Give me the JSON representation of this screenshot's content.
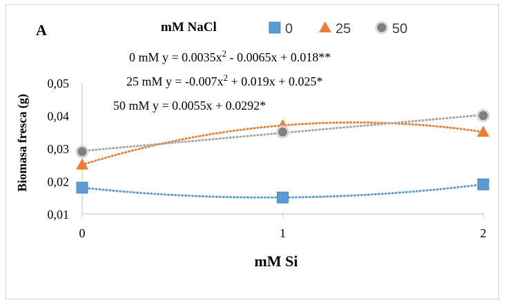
{
  "chart_data": {
    "type": "scatter",
    "panel_label": "A",
    "legend_title": "mM NaCl",
    "legend_position": "top-right",
    "xlabel": "mM Si",
    "ylabel": "Biomasa fresca (g)",
    "x": [
      0,
      1,
      2
    ],
    "x_tick_labels": [
      "0",
      "1",
      "2"
    ],
    "ylim": [
      0.01,
      0.05
    ],
    "y_ticks": [
      0.01,
      0.02,
      0.03,
      0.04,
      0.05
    ],
    "y_tick_labels": [
      "0,01",
      "0,02",
      "0,03",
      "0,04",
      "0,05"
    ],
    "grid": false,
    "series": [
      {
        "name": "0",
        "marker": "square",
        "color": "#5b9bd5",
        "values": [
          0.018,
          0.015,
          0.019
        ],
        "trendline": "poly2",
        "coef": [
          0.0035,
          -0.0065,
          0.018
        ]
      },
      {
        "name": "25",
        "marker": "triangle",
        "color": "#ed7d31",
        "values": [
          0.025,
          0.037,
          0.035
        ],
        "trendline": "poly2",
        "coef": [
          -0.007,
          0.019,
          0.025
        ]
      },
      {
        "name": "50",
        "marker": "circle",
        "color": "#a5a5a5",
        "values": [
          0.029,
          0.035,
          0.04
        ],
        "trendline": "linear",
        "coef": [
          0,
          0.0055,
          0.0292
        ]
      }
    ],
    "equations": [
      {
        "pre": "0 mM y = 0.0035x",
        "sup": "2",
        "post": " - 0.0065x + 0.018**"
      },
      {
        "pre": "25 mM y = -0.007x",
        "sup": "2",
        "post": " + 0.019x + 0.025*"
      },
      {
        "pre": "50 mM y = 0.0055x + 0.0292*",
        "sup": "",
        "post": ""
      }
    ]
  }
}
